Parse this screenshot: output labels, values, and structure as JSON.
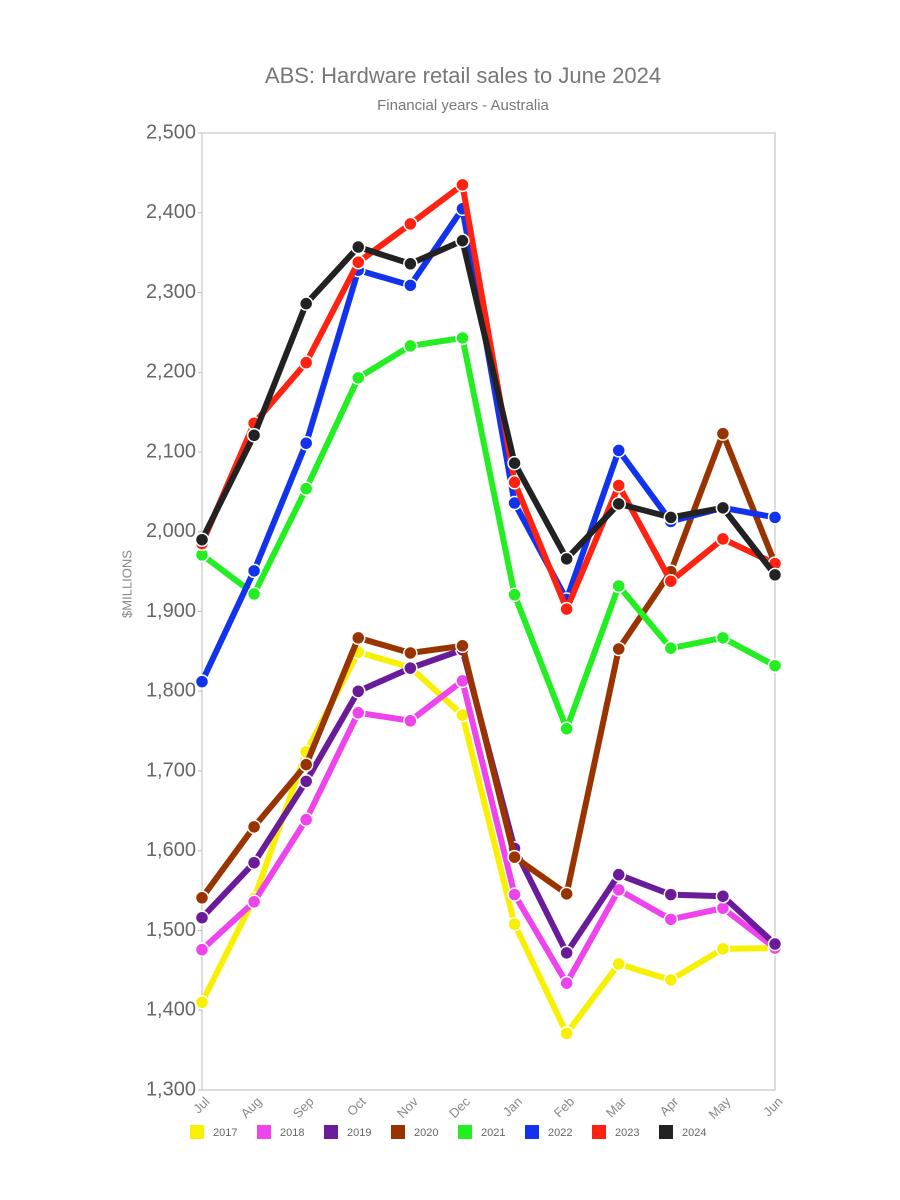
{
  "chart_data": {
    "type": "line",
    "title": "ABS: Hardware retail sales to June 2024",
    "subtitle": "Financial years - Australia",
    "y_label": "$MILLIONS",
    "categories": [
      "Jul",
      "Aug",
      "Sep",
      "Oct",
      "Nov",
      "Dec",
      "Jan",
      "Feb",
      "Mar",
      "Apr",
      "May",
      "Jun"
    ],
    "ylim": [
      1300,
      2500
    ],
    "yticks": [
      {
        "value": 1300,
        "label": "1,300"
      },
      {
        "value": 1400,
        "label": "1,400"
      },
      {
        "value": 1500,
        "label": "1,500"
      },
      {
        "value": 1600,
        "label": "1,600"
      },
      {
        "value": 1700,
        "label": "1,700"
      },
      {
        "value": 1800,
        "label": "1,800"
      },
      {
        "value": 1900,
        "label": "1,900"
      },
      {
        "value": 2000,
        "label": "2,000"
      },
      {
        "value": 2100,
        "label": "2,100"
      },
      {
        "value": 2200,
        "label": "2,200"
      },
      {
        "value": 2300,
        "label": "2,300"
      },
      {
        "value": 2400,
        "label": "2,400"
      },
      {
        "value": 2500,
        "label": "2,500"
      }
    ],
    "series": [
      {
        "name": "2017",
        "color": "#f7f000",
        "values": [
          1410,
          1540,
          1724,
          1849,
          1830,
          1770,
          1508,
          1371,
          1458,
          1438,
          1477,
          1478
        ]
      },
      {
        "name": "2018",
        "color": "#ee44ee",
        "values": [
          1476,
          1536,
          1639,
          1773,
          1763,
          1813,
          1545,
          1434,
          1551,
          1514,
          1528,
          1478
        ]
      },
      {
        "name": "2019",
        "color": "#6a1b9a",
        "values": [
          1516,
          1585,
          1687,
          1800,
          1829,
          1852,
          1603,
          1472,
          1570,
          1545,
          1543,
          1483
        ]
      },
      {
        "name": "2020",
        "color": "#993300",
        "values": [
          1541,
          1630,
          1708,
          1867,
          1848,
          1857,
          1592,
          1546,
          1853,
          1950,
          2123,
          1960
        ]
      },
      {
        "name": "2021",
        "color": "#22ee22",
        "values": [
          1971,
          1922,
          2054,
          2193,
          2233,
          2243,
          1921,
          1753,
          1932,
          1854,
          1867,
          1832
        ]
      },
      {
        "name": "2022",
        "color": "#1133ee",
        "values": [
          1812,
          1951,
          2111,
          2328,
          2309,
          2405,
          2036,
          1915,
          2102,
          2013,
          2030,
          2018
        ]
      },
      {
        "name": "2023",
        "color": "#ff2211",
        "values": [
          1985,
          2136,
          2212,
          2338,
          2386,
          2435,
          2062,
          1903,
          2058,
          1938,
          1991,
          1960
        ]
      },
      {
        "name": "2024",
        "color": "#222222",
        "values": [
          1990,
          2121,
          2286,
          2357,
          2336,
          2365,
          2086,
          1966,
          2035,
          2018,
          2030,
          1946
        ]
      }
    ]
  }
}
